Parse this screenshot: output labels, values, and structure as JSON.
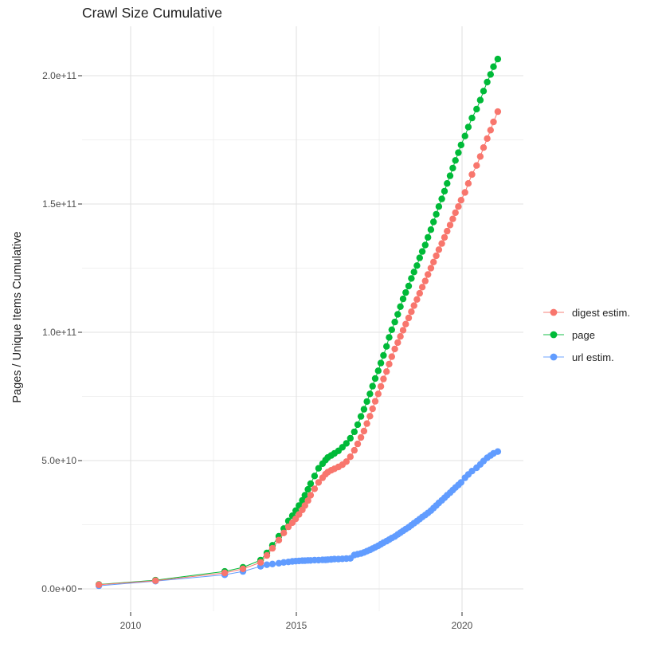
{
  "chart_data": {
    "type": "scatter",
    "title": "Crawl Size Cumulative",
    "xlabel": "",
    "ylabel": "Pages / Unique Items Cumulative",
    "legend_position": "right",
    "background": "#FFFFFF",
    "grid": {
      "major_color": "#E2E2E2",
      "minor_color": "#EDEDED",
      "axis_text_color": "#4D4D4D"
    },
    "x_ticks": {
      "labels": [
        "2010",
        "2015",
        "2020"
      ],
      "major": [
        2010,
        2015,
        2020
      ],
      "minor": [
        2012.5,
        2017.5
      ]
    },
    "y_ticks": {
      "labels": [
        "0.0e+00",
        "5.0e+10",
        "1.0e+11",
        "1.5e+11",
        "2.0e+11"
      ],
      "major_values_e9": [
        0,
        50,
        100,
        150,
        200
      ],
      "minor_values_e9": [
        25,
        75,
        125,
        175
      ]
    },
    "value_unit": "pages (values in billions, 1e9)",
    "xlim": [
      2008.55,
      2021.85
    ],
    "ylim_e9": [
      0,
      218
    ],
    "x_years": [
      2009.04,
      2010.75,
      2012.84,
      2013.39,
      2013.92,
      2014.11,
      2014.28,
      2014.47,
      2014.62,
      2014.76,
      2014.88,
      2014.98,
      2015.08,
      2015.18,
      2015.26,
      2015.35,
      2015.43,
      2015.55,
      2015.67,
      2015.79,
      2015.88,
      2015.95,
      2016.05,
      2016.15,
      2016.27,
      2016.39,
      2016.51,
      2016.63,
      2016.75,
      2016.85,
      2016.95,
      2017.04,
      2017.13,
      2017.22,
      2017.3,
      2017.38,
      2017.47,
      2017.55,
      2017.63,
      2017.72,
      2017.8,
      2017.88,
      2017.97,
      2018.06,
      2018.14,
      2018.22,
      2018.3,
      2018.39,
      2018.47,
      2018.55,
      2018.64,
      2018.72,
      2018.8,
      2018.89,
      2018.97,
      2019.06,
      2019.14,
      2019.22,
      2019.3,
      2019.39,
      2019.47,
      2019.55,
      2019.64,
      2019.72,
      2019.8,
      2019.89,
      2019.97,
      2020.09,
      2020.19,
      2020.3,
      2020.44,
      2020.55,
      2020.65,
      2020.76,
      2020.86,
      2020.95,
      2021.08
    ],
    "series": [
      {
        "name": "digest estim.",
        "color": "#F8766D",
        "values_e9": [
          1.6,
          3.2,
          6.2,
          7.8,
          10.3,
          13.0,
          15.8,
          19.0,
          21.8,
          24.2,
          25.8,
          27.3,
          29.0,
          30.8,
          32.5,
          34.4,
          36.5,
          39.0,
          41.5,
          43.3,
          44.7,
          45.5,
          46.2,
          46.8,
          47.5,
          48.4,
          49.6,
          51.5,
          54.0,
          56.5,
          59.0,
          61.5,
          64.4,
          67.3,
          70.2,
          73.1,
          76.0,
          78.9,
          81.8,
          84.7,
          87.6,
          90.5,
          93.5,
          96.0,
          98.4,
          100.8,
          103.2,
          105.6,
          108.0,
          110.4,
          112.8,
          115.2,
          117.6,
          120.0,
          122.5,
          125.0,
          127.4,
          129.8,
          132.2,
          134.6,
          137.0,
          139.4,
          141.8,
          144.2,
          146.6,
          149.0,
          151.5,
          154.5,
          158.0,
          161.5,
          165.0,
          168.5,
          172.0,
          175.5,
          178.8,
          182.0,
          186.0
        ]
      },
      {
        "name": "page",
        "color": "#00BA38",
        "values_e9": [
          1.7,
          3.4,
          6.8,
          8.4,
          11.2,
          14.0,
          17.0,
          20.5,
          23.5,
          26.5,
          28.5,
          30.5,
          32.5,
          34.5,
          36.5,
          38.8,
          41.0,
          44.0,
          47.0,
          48.8,
          50.2,
          51.2,
          52.0,
          52.8,
          53.8,
          55.2,
          56.7,
          58.7,
          61.2,
          64.0,
          67.2,
          70.0,
          73.0,
          76.0,
          79.0,
          82.0,
          85.0,
          88.0,
          91.0,
          94.5,
          98.0,
          101.0,
          104.0,
          107.0,
          110.0,
          113.0,
          115.5,
          118.0,
          121.0,
          123.5,
          126.0,
          129.0,
          131.5,
          134.0,
          137.0,
          140.0,
          143.0,
          146.0,
          149.0,
          152.0,
          155.0,
          158.0,
          161.0,
          164.0,
          167.0,
          170.0,
          173.0,
          176.5,
          180.0,
          183.5,
          187.0,
          190.5,
          194.0,
          197.5,
          200.5,
          203.5,
          206.5
        ]
      },
      {
        "name": "url estim.",
        "color": "#619CFF",
        "values_e9": [
          1.2,
          3.0,
          5.5,
          6.8,
          8.8,
          9.4,
          9.7,
          10.0,
          10.3,
          10.5,
          10.7,
          10.8,
          10.9,
          11.0,
          11.0,
          11.1,
          11.1,
          11.2,
          11.2,
          11.3,
          11.3,
          11.4,
          11.5,
          11.6,
          11.6,
          11.7,
          11.8,
          11.9,
          13.2,
          13.5,
          13.8,
          14.2,
          14.7,
          15.2,
          15.7,
          16.2,
          16.8,
          17.4,
          18.0,
          18.6,
          19.2,
          19.8,
          20.4,
          21.2,
          21.9,
          22.6,
          23.3,
          24.0,
          24.8,
          25.6,
          26.4,
          27.2,
          28.0,
          28.8,
          29.6,
          30.5,
          31.5,
          32.5,
          33.5,
          34.5,
          35.5,
          36.5,
          37.5,
          38.5,
          39.5,
          40.5,
          41.5,
          43.3,
          44.6,
          45.9,
          47.2,
          48.5,
          49.8,
          51.1,
          52.0,
          52.8,
          53.5
        ]
      }
    ],
    "draw_order_series_indices": [
      1,
      2,
      0
    ]
  }
}
